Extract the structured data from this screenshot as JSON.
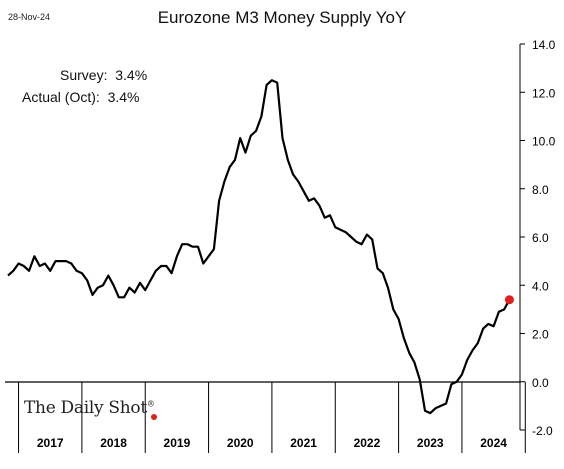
{
  "header": {
    "date": "28-Nov-24",
    "title": "Eurozone M3 Money Supply YoY"
  },
  "annotations": {
    "survey": "Survey:  3.4%",
    "actual": "Actual (Oct):  3.4%"
  },
  "brand": {
    "name": "The Daily Shot",
    "mark": "®"
  },
  "colors": {
    "line": "#000000",
    "marker": "#e02020",
    "axis": "#000000"
  },
  "chart_data": {
    "type": "line",
    "title": "Eurozone M3 Money Supply YoY",
    "xlabel": "",
    "ylabel": "",
    "ylim": [
      -2.0,
      14.0
    ],
    "yticks": [
      -2.0,
      0.0,
      2.0,
      4.0,
      6.0,
      8.0,
      10.0,
      12.0,
      14.0
    ],
    "ytick_labels": [
      "-2.0",
      "0.0",
      "2.0",
      "4.0",
      "6.0",
      "8.0",
      "10.0",
      "12.0",
      "14.0"
    ],
    "year_labels": [
      "2017",
      "2018",
      "2019",
      "2020",
      "2021",
      "2022",
      "2023",
      "2024"
    ],
    "xlim": [
      "2016-11",
      "2024-12"
    ],
    "grid": false,
    "highlight_point": {
      "x": "2024-10",
      "y": 3.4
    },
    "series": [
      {
        "x": [
          "2016-11",
          "2016-12",
          "2017-01",
          "2017-02",
          "2017-03",
          "2017-04",
          "2017-05",
          "2017-06",
          "2017-07",
          "2017-08",
          "2017-09",
          "2017-10",
          "2017-11",
          "2017-12",
          "2018-01",
          "2018-02",
          "2018-03",
          "2018-04",
          "2018-05",
          "2018-06",
          "2018-07",
          "2018-08",
          "2018-09",
          "2018-10",
          "2018-11",
          "2018-12",
          "2019-01",
          "2019-02",
          "2019-03",
          "2019-04",
          "2019-05",
          "2019-06",
          "2019-07",
          "2019-08",
          "2019-09",
          "2019-10",
          "2019-11",
          "2019-12",
          "2020-01",
          "2020-02",
          "2020-03",
          "2020-04",
          "2020-05",
          "2020-06",
          "2020-07",
          "2020-08",
          "2020-09",
          "2020-10",
          "2020-11",
          "2020-12",
          "2021-01",
          "2021-02",
          "2021-03",
          "2021-04",
          "2021-05",
          "2021-06",
          "2021-07",
          "2021-08",
          "2021-09",
          "2021-10",
          "2021-11",
          "2021-12",
          "2022-01",
          "2022-02",
          "2022-03",
          "2022-04",
          "2022-05",
          "2022-06",
          "2022-07",
          "2022-08",
          "2022-09",
          "2022-10",
          "2022-11",
          "2022-12",
          "2023-01",
          "2023-02",
          "2023-03",
          "2023-04",
          "2023-05",
          "2023-06",
          "2023-07",
          "2023-08",
          "2023-09",
          "2023-10",
          "2023-11",
          "2023-12",
          "2024-01",
          "2024-02",
          "2024-03",
          "2024-04",
          "2024-05",
          "2024-06",
          "2024-07",
          "2024-08",
          "2024-09",
          "2024-10"
        ],
        "values": [
          4.4,
          4.6,
          4.9,
          4.8,
          4.6,
          5.2,
          4.8,
          4.9,
          4.6,
          5.0,
          5.0,
          5.0,
          4.9,
          4.6,
          4.5,
          4.2,
          3.6,
          3.9,
          4.0,
          4.4,
          4.0,
          3.5,
          3.5,
          3.9,
          3.7,
          4.1,
          3.8,
          4.2,
          4.6,
          4.8,
          4.8,
          4.5,
          5.2,
          5.7,
          5.7,
          5.6,
          5.6,
          4.9,
          5.2,
          5.5,
          7.5,
          8.3,
          8.9,
          9.2,
          10.1,
          9.5,
          10.2,
          10.4,
          11.0,
          12.3,
          12.5,
          12.4,
          10.1,
          9.2,
          8.6,
          8.3,
          7.9,
          7.5,
          7.6,
          7.3,
          6.8,
          6.9,
          6.4,
          6.3,
          6.2,
          6.0,
          5.8,
          5.7,
          6.1,
          5.9,
          4.7,
          4.5,
          3.9,
          3.0,
          2.6,
          1.8,
          1.2,
          0.8,
          0.1,
          -1.2,
          -1.3,
          -1.1,
          -1.0,
          -0.9,
          -0.1,
          0.0,
          0.3,
          0.9,
          1.3,
          1.6,
          2.2,
          2.4,
          2.3,
          2.9,
          3.0,
          3.4
        ]
      }
    ]
  }
}
